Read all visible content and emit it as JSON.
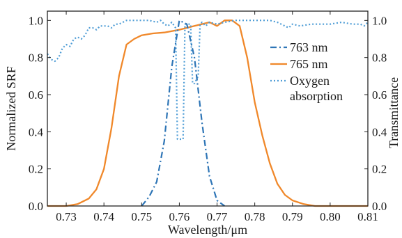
{
  "chart_data": {
    "type": "line",
    "xlabel": "Wavelength/μm",
    "ylabel_left": "Normalized SRF",
    "ylabel_right": "Transmittance",
    "xlim": [
      0.725,
      0.81
    ],
    "ylim_left": [
      0.0,
      1.05
    ],
    "ylim_right": [
      0.0,
      1.05
    ],
    "x_ticks": [
      0.73,
      0.74,
      0.75,
      0.76,
      0.77,
      0.78,
      0.79,
      0.8,
      0.81
    ],
    "x_tick_labels": [
      "0.73",
      "0.74",
      "0.75",
      "0.76",
      "0.77",
      "0.78",
      "0.79",
      "0.80",
      "0.81"
    ],
    "y_ticks_left": [
      0.0,
      0.2,
      0.4,
      0.6,
      0.8,
      1.0
    ],
    "y_tick_labels_left": [
      "0.0",
      "0.2",
      "0.4",
      "0.6",
      "0.8",
      "1.0"
    ],
    "y_ticks_right": [
      0.0,
      0.2,
      0.4,
      0.6,
      0.8,
      1.0
    ],
    "y_tick_labels_right": [
      "0.0",
      "0.2",
      "0.4",
      "0.6",
      "0.8",
      "1.0"
    ],
    "grid": false,
    "legend_position": "right",
    "series": [
      {
        "name": "763 nm",
        "axis": "left",
        "color": "#2e75b6",
        "style": "dashdot",
        "x": [
          0.75,
          0.752,
          0.754,
          0.756,
          0.758,
          0.76,
          0.762,
          0.764,
          0.766,
          0.768,
          0.77,
          0.772
        ],
        "y": [
          0.0,
          0.05,
          0.13,
          0.35,
          0.75,
          1.0,
          0.98,
          0.8,
          0.45,
          0.16,
          0.03,
          0.0
        ]
      },
      {
        "name": "765 nm",
        "axis": "left",
        "color": "#f0882a",
        "style": "solid",
        "x": [
          0.725,
          0.73,
          0.733,
          0.736,
          0.738,
          0.74,
          0.742,
          0.744,
          0.746,
          0.748,
          0.75,
          0.753,
          0.756,
          0.76,
          0.764,
          0.768,
          0.77,
          0.772,
          0.774,
          0.776,
          0.778,
          0.78,
          0.782,
          0.784,
          0.786,
          0.788,
          0.79,
          0.793,
          0.796,
          0.8,
          0.805,
          0.81
        ],
        "y": [
          0.0,
          0.0,
          0.01,
          0.04,
          0.09,
          0.2,
          0.42,
          0.7,
          0.87,
          0.9,
          0.92,
          0.93,
          0.935,
          0.95,
          0.97,
          0.99,
          0.97,
          1.0,
          1.0,
          0.97,
          0.8,
          0.56,
          0.38,
          0.23,
          0.12,
          0.06,
          0.03,
          0.01,
          0.0,
          0.0,
          0.0,
          0.0
        ]
      },
      {
        "name": "Oxygen absorption",
        "axis": "right",
        "color": "#4f9dd6",
        "style": "dotted",
        "x": [
          0.725,
          0.726,
          0.727,
          0.728,
          0.729,
          0.73,
          0.731,
          0.732,
          0.733,
          0.734,
          0.735,
          0.736,
          0.737,
          0.738,
          0.739,
          0.74,
          0.741,
          0.742,
          0.743,
          0.744,
          0.745,
          0.746,
          0.748,
          0.75,
          0.752,
          0.754,
          0.755,
          0.756,
          0.757,
          0.758,
          0.759,
          0.7595,
          0.76,
          0.761,
          0.7615,
          0.762,
          0.763,
          0.7635,
          0.764,
          0.765,
          0.7655,
          0.766,
          0.767,
          0.768,
          0.77,
          0.772,
          0.775,
          0.778,
          0.78,
          0.782,
          0.784,
          0.786,
          0.787,
          0.788,
          0.789,
          0.79,
          0.792,
          0.795,
          0.798,
          0.8,
          0.803,
          0.806,
          0.808,
          0.809,
          0.81
        ],
        "y": [
          0.82,
          0.79,
          0.78,
          0.8,
          0.85,
          0.87,
          0.86,
          0.9,
          0.91,
          0.9,
          0.92,
          0.96,
          0.96,
          0.95,
          0.97,
          0.97,
          0.97,
          0.96,
          0.98,
          0.98,
          0.99,
          1.0,
          1.0,
          1.0,
          1.0,
          0.99,
          1.0,
          0.98,
          0.97,
          0.99,
          0.96,
          0.36,
          0.36,
          0.36,
          0.98,
          0.98,
          0.98,
          0.66,
          0.66,
          0.7,
          0.98,
          0.99,
          0.97,
          0.99,
          0.98,
          0.99,
          1.0,
          1.0,
          1.0,
          1.0,
          1.0,
          0.99,
          0.98,
          0.97,
          0.96,
          0.98,
          0.97,
          0.98,
          0.98,
          0.98,
          0.99,
          0.98,
          0.98,
          0.97,
          0.99
        ]
      }
    ]
  }
}
